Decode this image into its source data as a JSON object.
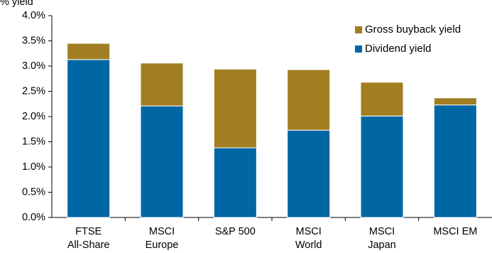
{
  "chart_data": {
    "type": "bar",
    "stacked": true,
    "ylabel": "% yield",
    "ylim": [
      0,
      4.0
    ],
    "yticks": [
      "0.0%",
      "0.5%",
      "1.0%",
      "1.5%",
      "2.0%",
      "2.5%",
      "3.0%",
      "3.5%",
      "4.0%"
    ],
    "categories": [
      [
        "FTSE",
        "All-Share"
      ],
      [
        "MSCI",
        "Europe"
      ],
      [
        "S&P 500"
      ],
      [
        "MSCI",
        "World"
      ],
      [
        "MSCI",
        "Japan"
      ],
      [
        "MSCI EM"
      ]
    ],
    "series": [
      {
        "name": "Dividend yield",
        "color": "#0066a4",
        "values": [
          3.13,
          2.21,
          1.38,
          1.73,
          2.01,
          2.23
        ]
      },
      {
        "name": "Gross buyback yield",
        "color": "#a17e21",
        "values": [
          0.32,
          0.85,
          1.56,
          1.2,
          0.67,
          0.14
        ]
      }
    ],
    "legend": {
      "placement": "top-right",
      "items": [
        {
          "label": "Gross buyback yield",
          "color": "#a17e21"
        },
        {
          "label": "Dividend yield",
          "color": "#0066a4"
        }
      ]
    },
    "grid": false
  }
}
